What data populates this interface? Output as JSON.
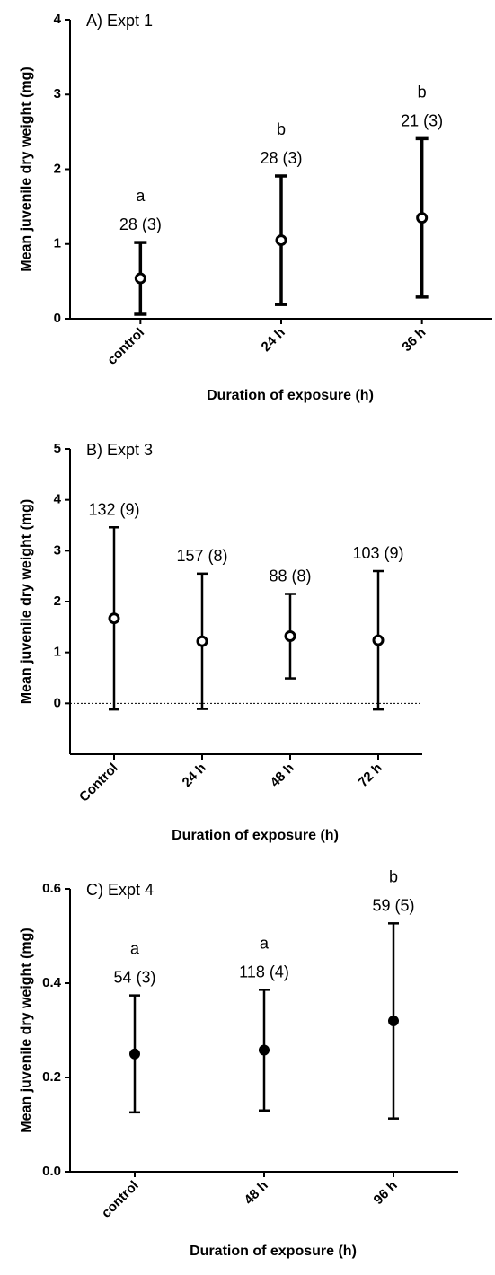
{
  "chart_data": [
    {
      "type": "errorbar",
      "title": "A) Expt 1",
      "x_label": "Duration of exposure (h)",
      "y_label": "Mean juvenile dry weight (mg)",
      "categories": [
        "control",
        "24 h",
        "36 h"
      ],
      "values": [
        0.54,
        1.05,
        1.35
      ],
      "errors": [
        0.48,
        0.86,
        1.06
      ],
      "group_letters": [
        "a",
        "b",
        "b"
      ],
      "sample_labels": [
        "28 (3)",
        "28 (3)",
        "21 (3)"
      ],
      "ylim": [
        0,
        4
      ],
      "yticks": [
        0,
        1,
        2,
        3,
        4
      ],
      "marker": "open",
      "color": "#000000"
    },
    {
      "type": "errorbar",
      "title": "B) Expt 3",
      "x_label": "Duration of exposure  (h)",
      "y_label": "Mean juvenile dry weight (mg)",
      "categories": [
        "Control",
        "24 h",
        "48 h",
        "72 h"
      ],
      "values": [
        1.67,
        1.22,
        1.32,
        1.24
      ],
      "errors": [
        1.79,
        1.33,
        0.83,
        1.36
      ],
      "sample_labels": [
        "132 (9)",
        "157 (8)",
        "88 (8)",
        "103 (9)"
      ],
      "ylim": [
        -1,
        5
      ],
      "yticks": [
        0,
        1,
        2,
        3,
        4,
        5
      ],
      "marker": "open",
      "zero_line": true,
      "color": "#000000"
    },
    {
      "type": "errorbar",
      "title": "C) Expt 4",
      "x_label": "Duration of exposure  (h)",
      "y_label": "Mean juvenile dry weight (mg)",
      "categories": [
        "control",
        "48 h",
        "96 h"
      ],
      "values": [
        0.25,
        0.258,
        0.32
      ],
      "errors": [
        0.124,
        0.128,
        0.207
      ],
      "group_letters": [
        "a",
        "a",
        "b"
      ],
      "sample_labels": [
        "54 (3)",
        "118 (4)",
        "59 (5)"
      ],
      "ylim": [
        0,
        0.6
      ],
      "yticks": [
        {
          "value": 0,
          "label": "0.0"
        },
        0.2,
        0.4,
        0.6
      ],
      "marker": "filled",
      "color": "#000000"
    }
  ]
}
